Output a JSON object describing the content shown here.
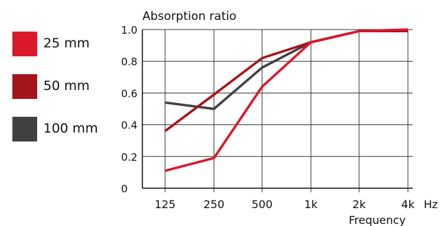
{
  "chart_data": {
    "type": "line",
    "ylabel": "Absorption ratio",
    "xlabel": "Frequency",
    "x_unit": "Hz",
    "categories": [
      "125",
      "250",
      "500",
      "1k",
      "2k",
      "4k"
    ],
    "yticks": [
      "0",
      "0.2",
      "0.4",
      "0.6",
      "0.8",
      "1.0"
    ],
    "ylim": [
      0,
      1.0
    ],
    "grid": true,
    "legend_position": "left",
    "series": [
      {
        "name": "25 mm",
        "color": "#d9182a",
        "values": [
          0.11,
          0.19,
          0.64,
          0.92,
          0.99,
          1.0
        ]
      },
      {
        "name": "50 mm",
        "color": "#a4141b",
        "values": [
          0.36,
          0.59,
          0.82,
          0.92,
          0.99,
          0.99
        ]
      },
      {
        "name": "100 mm",
        "color": "#414141",
        "values": [
          0.54,
          0.5,
          0.76,
          0.92,
          0.99,
          0.99
        ]
      }
    ]
  }
}
